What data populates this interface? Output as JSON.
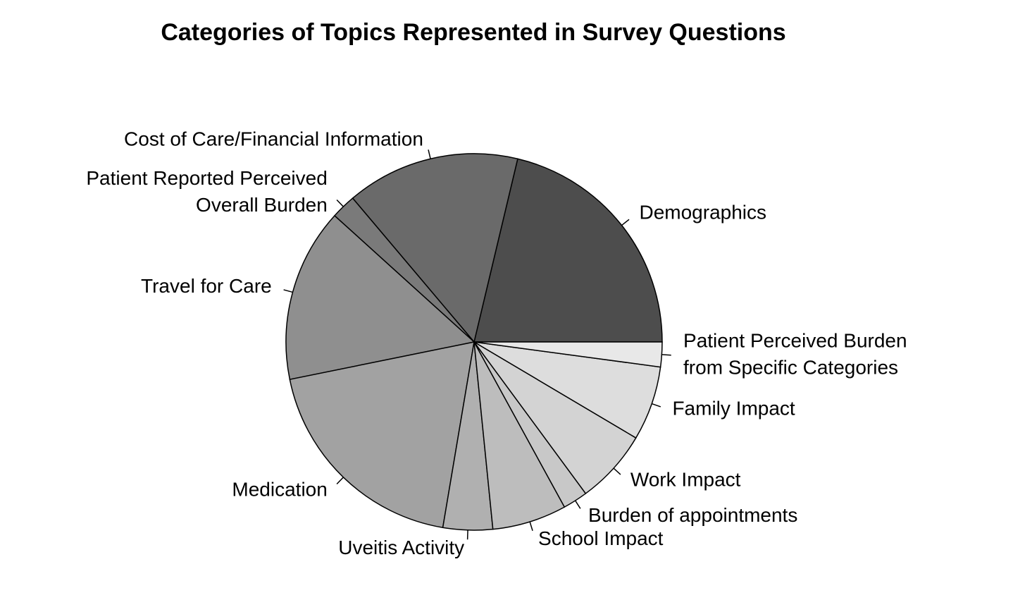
{
  "chart_data": {
    "type": "pie",
    "title": "Categories of Topics Represented in Survey Questions",
    "categories": [
      "Demographics",
      "Cost of Care/Financial Information",
      "Patient Reported Perceived\nOverall Burden",
      "Travel for Care",
      "Medication",
      "Uveitis Activity",
      "School Impact",
      "Burden of appointments",
      "Work Impact",
      "Family Impact",
      "Patient Perceived Burden\nfrom Specific Categories"
    ],
    "values": [
      10,
      7,
      1,
      7,
      9,
      2,
      3,
      1,
      3,
      3,
      1
    ],
    "colors": [
      "#4d4d4d",
      "#6a6a6a",
      "#7a7a7a",
      "#8f8f8f",
      "#a2a2a2",
      "#b0b0b0",
      "#bdbdbd",
      "#c8c8c8",
      "#d3d3d3",
      "#dddddd",
      "#e8e8e8"
    ]
  }
}
